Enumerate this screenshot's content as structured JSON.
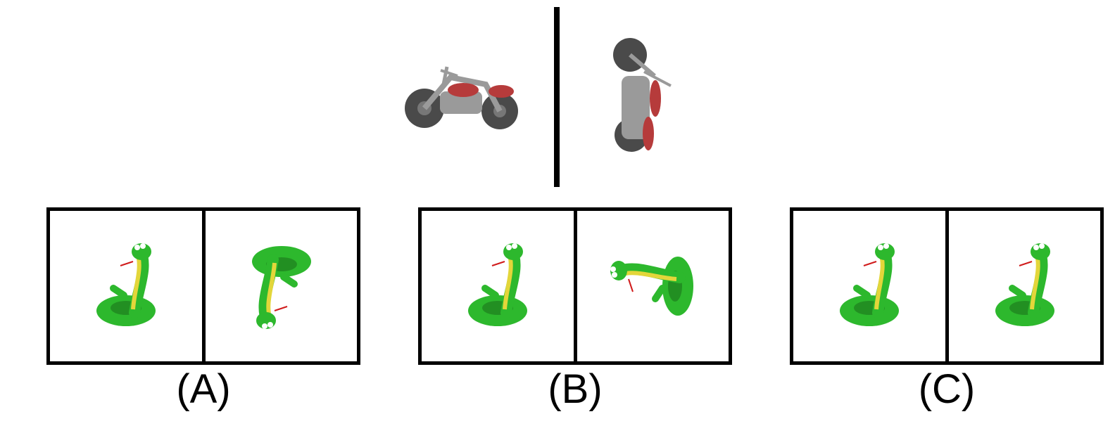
{
  "reference": {
    "left_icon": "motorcycle-side-view-icon",
    "right_icon": "motorcycle-rotated-view-icon"
  },
  "options": [
    {
      "label": "(A)",
      "left_icon": "snake-upright-icon",
      "right_icon": "snake-upside-down-icon"
    },
    {
      "label": "(B)",
      "left_icon": "snake-upright-icon",
      "right_icon": "snake-lying-sideways-icon"
    },
    {
      "label": "(C)",
      "left_icon": "snake-upright-icon",
      "right_icon": "snake-upright-icon"
    }
  ],
  "colors": {
    "border": "#000000",
    "snake_green": "#2db82d",
    "snake_yellow": "#e3d63a",
    "tongue_red": "#d01a1a",
    "moto_tire": "#4a4a4a",
    "moto_body": "#9a9a9a",
    "moto_red": "#b63b3b"
  }
}
